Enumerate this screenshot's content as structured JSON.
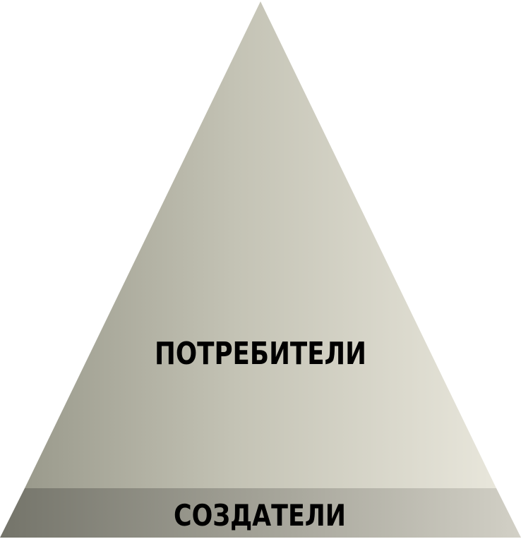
{
  "diagram": {
    "type": "pyramid",
    "tiers": [
      {
        "id": "top",
        "label": "ПОТРЕБИТЕЛИ"
      },
      {
        "id": "base",
        "label": "СОЗДАТЕЛИ"
      }
    ]
  },
  "colors": {
    "top_gradient_left": "#9a9a8c",
    "top_gradient_right": "#e6e4d8",
    "base_gradient_left": "#77776c",
    "base_gradient_right": "#cfcdc2",
    "text": "#000000"
  }
}
